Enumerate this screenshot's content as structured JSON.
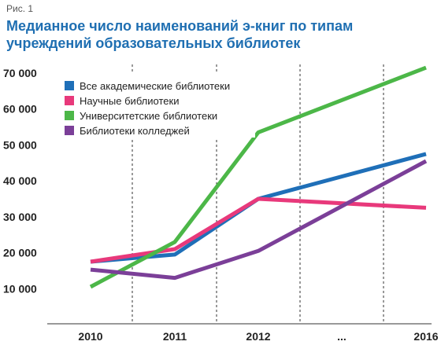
{
  "figure_label": "Рис. 1",
  "title_lines": [
    "Медианное число наименований э-книг по типам",
    "учреждений образовательных библиотек"
  ],
  "chart_data": {
    "type": "line",
    "title": "Медианное число наименований э-книг по типам учреждений образовательных библиотек",
    "categories": [
      "2010",
      "2011",
      "2012",
      "...",
      "2016"
    ],
    "ylim": [
      0,
      70000
    ],
    "yticks": [
      "10 000",
      "20 000",
      "30 000",
      "40 000",
      "50 000",
      "60 000",
      "70 000"
    ],
    "ytick_values": [
      10000,
      20000,
      30000,
      40000,
      50000,
      60000,
      70000
    ],
    "grid": "vertical dashed",
    "legend_position": "top-left",
    "series": [
      {
        "name": "Все академические библиотеки",
        "color": "#1f6fb8",
        "points": [
          [
            0,
            17500
          ],
          [
            1,
            19500
          ],
          [
            2,
            35000
          ],
          [
            4,
            47500
          ]
        ]
      },
      {
        "name": "Научные библиотеки",
        "color": "#e8397b",
        "points": [
          [
            0,
            17500
          ],
          [
            1,
            21000
          ],
          [
            2,
            35000
          ],
          [
            4,
            32500
          ]
        ]
      },
      {
        "name": "Университетские библиотеки",
        "color": "#4cb748",
        "points": [
          [
            0,
            10500
          ],
          [
            1,
            23000
          ],
          [
            2,
            53500
          ],
          [
            4,
            71500
          ]
        ]
      },
      {
        "name": "Библиотеки колледжей",
        "color": "#7b3f98",
        "points": [
          [
            0,
            15300
          ],
          [
            1,
            13000
          ],
          [
            2,
            20500
          ],
          [
            4,
            45500
          ]
        ]
      }
    ]
  }
}
